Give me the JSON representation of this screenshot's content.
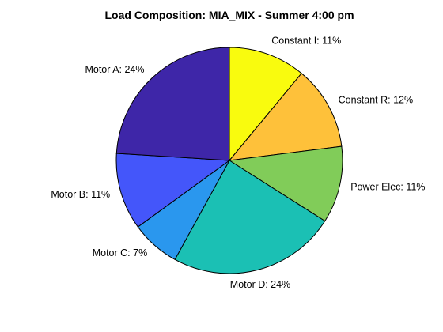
{
  "chart_data": {
    "type": "pie",
    "title": "Load Composition: MIA_MIX - Summer 4:00 pm",
    "slices": [
      {
        "label": "Constant I: 11%",
        "value": 11,
        "color": "#f9fb0e"
      },
      {
        "label": "Constant R: 12%",
        "value": 12,
        "color": "#fec13a"
      },
      {
        "label": "Power Elec: 11%",
        "value": 11,
        "color": "#81cc59"
      },
      {
        "label": "Motor D: 24%",
        "value": 24,
        "color": "#1bc0b4"
      },
      {
        "label": "Motor C: 7%",
        "value": 7,
        "color": "#2a97ee"
      },
      {
        "label": "Motor B: 11%",
        "value": 11,
        "color": "#4456fa"
      },
      {
        "label": "Motor A: 24%",
        "value": 24,
        "color": "#3e26a8"
      }
    ],
    "start_position": "top",
    "direction": "clockwise",
    "legend": "none"
  }
}
